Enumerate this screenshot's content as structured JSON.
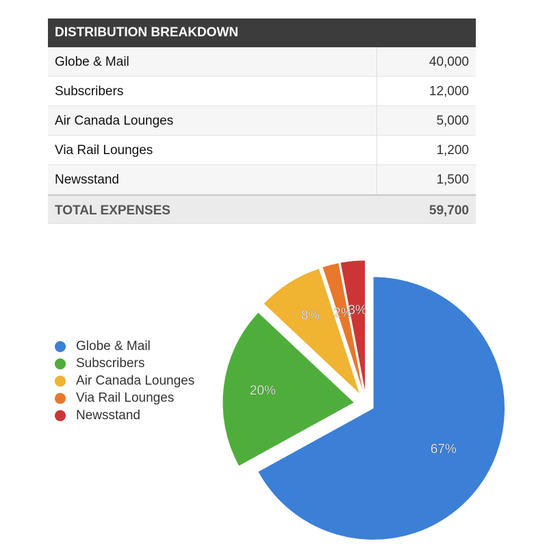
{
  "table": {
    "title": "DISTRIBUTION BREAKDOWN",
    "rows": [
      [
        "Globe & Mail",
        "40,000"
      ],
      [
        "Subscribers",
        "12,000"
      ],
      [
        "Air Canada Lounges",
        "5,000"
      ],
      [
        "Via Rail Lounges",
        "1,200"
      ],
      [
        "Newsstand",
        "1,500"
      ]
    ],
    "total": [
      "TOTAL EXPENSES",
      "59,700"
    ]
  },
  "chart_data": {
    "type": "pie",
    "categories": [
      "Globe & Mail",
      "Subscribers",
      "Air Canada Lounges",
      "Via Rail Lounges",
      "Newsstand"
    ],
    "values": [
      67,
      20,
      8,
      2,
      3
    ],
    "value_labels": [
      "67%",
      "20%",
      "8%",
      "2%",
      "3%"
    ],
    "colors": [
      "#3b7fd6",
      "#4fae3b",
      "#f0b332",
      "#e8782b",
      "#cc3535"
    ],
    "legend": "left"
  }
}
